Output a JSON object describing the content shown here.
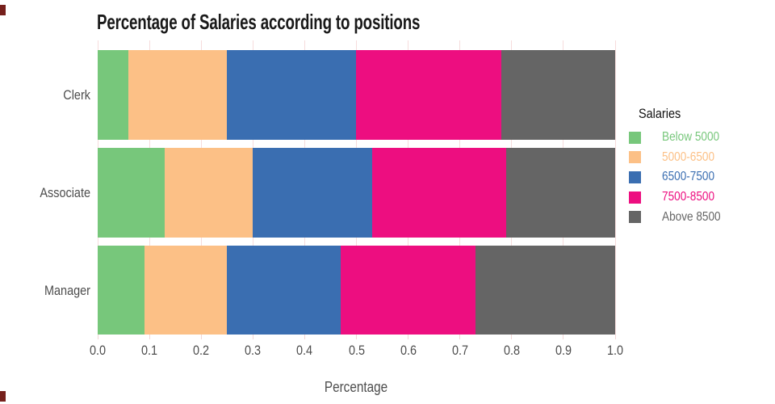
{
  "chart_data": {
    "type": "bar",
    "orientation": "horizontal",
    "stacked": true,
    "title": "Percentage of Salaries according to positions",
    "xlabel": "Percentage",
    "ylabel": "",
    "legend_title": "Salaries",
    "legend_position": "right",
    "grid": "vertical light-pink gridlines at every 0.1",
    "xlim": [
      0.0,
      1.0
    ],
    "xticks": [
      "0.0",
      "0.1",
      "0.2",
      "0.3",
      "0.4",
      "0.5",
      "0.6",
      "0.7",
      "0.8",
      "0.9",
      "1.0"
    ],
    "categories": [
      "Clerk",
      "Associate",
      "Manager"
    ],
    "series": [
      {
        "name": "Below 5000",
        "color": "#77c77b",
        "values": [
          0.06,
          0.13,
          0.09
        ]
      },
      {
        "name": "5000-6500",
        "color": "#fcc086",
        "values": [
          0.19,
          0.17,
          0.16
        ]
      },
      {
        "name": "6500-7500",
        "color": "#3a6eb1",
        "values": [
          0.25,
          0.23,
          0.22
        ]
      },
      {
        "name": "7500-8500",
        "color": "#ed0e80",
        "values": [
          0.28,
          0.26,
          0.26
        ]
      },
      {
        "name": "Above 8500",
        "color": "#656565",
        "values": [
          0.22,
          0.21,
          0.27
        ]
      }
    ]
  },
  "colors": {
    "background": "#ffffff",
    "title_text": "#191919",
    "axis_text": "#4d4d4d",
    "gridline": "#f6dcdc",
    "corner_mark": "#76201c"
  }
}
